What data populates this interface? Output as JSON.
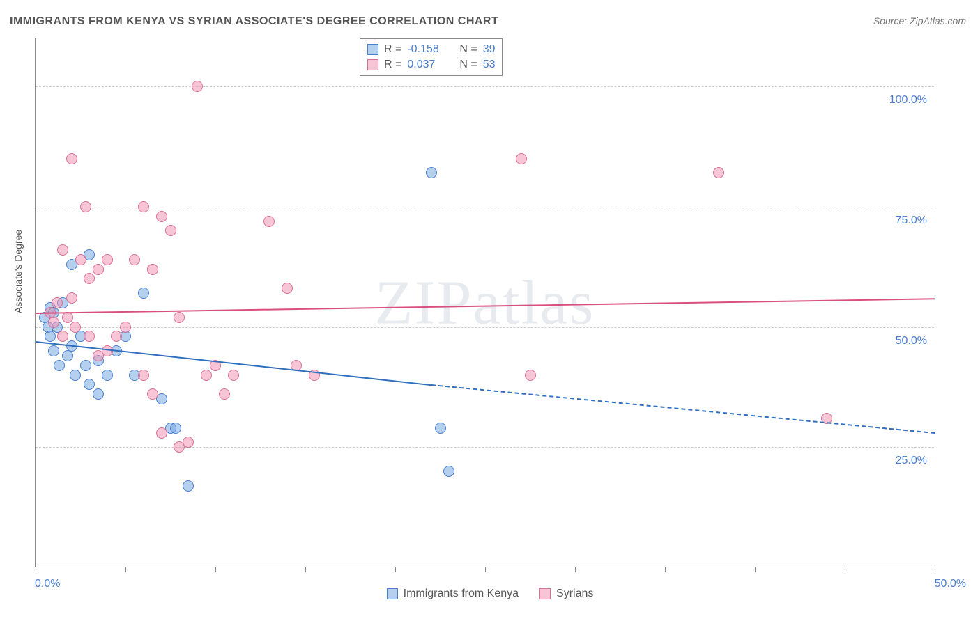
{
  "title": "IMMIGRANTS FROM KENYA VS SYRIAN ASSOCIATE'S DEGREE CORRELATION CHART",
  "source": "Source: ZipAtlas.com",
  "ylabel": "Associate's Degree",
  "watermark_a": "ZIP",
  "watermark_b": "atlas",
  "chart": {
    "type": "scatter",
    "background_color": "#ffffff",
    "grid_color": "#cccccc",
    "axis_color": "#888888",
    "label_color": "#4a7ecf",
    "text_color": "#555555",
    "xlim": [
      0,
      50
    ],
    "ylim": [
      0,
      110
    ],
    "y_gridlines": [
      25,
      50,
      75,
      100
    ],
    "y_tick_labels": [
      "25.0%",
      "50.0%",
      "75.0%",
      "100.0%"
    ],
    "x_ticks": [
      0,
      5,
      10,
      15,
      20,
      25,
      30,
      35,
      40,
      45,
      50
    ],
    "x_axis_min_label": "0.0%",
    "x_axis_max_label": "50.0%",
    "point_radius": 8,
    "series": [
      {
        "name": "Immigrants from Kenya",
        "fill_color": "rgba(120, 170, 225, 0.55)",
        "stroke_color": "#4a7ecf",
        "line_color": "#2f6fbf",
        "r_value": "-0.158",
        "n_value": "39",
        "trend": {
          "x1": 0,
          "y1": 47,
          "x2": 22,
          "y2": 38,
          "dash_x2": 50,
          "dash_y2": 28
        },
        "points": [
          [
            0.5,
            52
          ],
          [
            0.7,
            50
          ],
          [
            0.8,
            54
          ],
          [
            0.8,
            48
          ],
          [
            1.0,
            53
          ],
          [
            1.2,
            50
          ],
          [
            1.5,
            55
          ],
          [
            1.0,
            45
          ],
          [
            1.3,
            42
          ],
          [
            1.8,
            44
          ],
          [
            2.0,
            46
          ],
          [
            2.5,
            48
          ],
          [
            2.0,
            63
          ],
          [
            3.0,
            65
          ],
          [
            2.2,
            40
          ],
          [
            2.8,
            42
          ],
          [
            3.5,
            43
          ],
          [
            3.0,
            38
          ],
          [
            3.5,
            36
          ],
          [
            4.0,
            40
          ],
          [
            4.5,
            45
          ],
          [
            5.0,
            48
          ],
          [
            5.5,
            40
          ],
          [
            6.0,
            57
          ],
          [
            7.0,
            35
          ],
          [
            7.5,
            29
          ],
          [
            7.8,
            29
          ],
          [
            8.5,
            17
          ],
          [
            22.0,
            82
          ],
          [
            22.5,
            29
          ],
          [
            23.0,
            20
          ]
        ]
      },
      {
        "name": "Syrians",
        "fill_color": "rgba(240, 150, 180, 0.55)",
        "stroke_color": "#d77095",
        "line_color": "#d94f7f",
        "r_value": "0.037",
        "n_value": "53",
        "trend": {
          "x1": 0,
          "y1": 53,
          "x2": 50,
          "y2": 56
        },
        "points": [
          [
            0.8,
            53
          ],
          [
            1.0,
            51
          ],
          [
            1.2,
            55
          ],
          [
            1.5,
            48
          ],
          [
            1.8,
            52
          ],
          [
            2.0,
            56
          ],
          [
            2.2,
            50
          ],
          [
            2.5,
            64
          ],
          [
            2.8,
            75
          ],
          [
            1.5,
            66
          ],
          [
            2.0,
            85
          ],
          [
            3.0,
            60
          ],
          [
            3.5,
            62
          ],
          [
            4.0,
            64
          ],
          [
            3.0,
            48
          ],
          [
            3.5,
            44
          ],
          [
            4.0,
            45
          ],
          [
            4.5,
            48
          ],
          [
            5.0,
            50
          ],
          [
            5.5,
            64
          ],
          [
            6.0,
            75
          ],
          [
            6.5,
            62
          ],
          [
            7.0,
            73
          ],
          [
            7.5,
            70
          ],
          [
            8.0,
            52
          ],
          [
            6.0,
            40
          ],
          [
            6.5,
            36
          ],
          [
            7.0,
            28
          ],
          [
            8.0,
            25
          ],
          [
            8.5,
            26
          ],
          [
            9.0,
            100
          ],
          [
            9.5,
            40
          ],
          [
            10.0,
            42
          ],
          [
            10.5,
            36
          ],
          [
            11.0,
            40
          ],
          [
            13.0,
            72
          ],
          [
            14.0,
            58
          ],
          [
            14.5,
            42
          ],
          [
            15.5,
            40
          ],
          [
            27.0,
            85
          ],
          [
            27.5,
            40
          ],
          [
            38.0,
            82
          ],
          [
            44.0,
            31
          ]
        ]
      }
    ]
  }
}
